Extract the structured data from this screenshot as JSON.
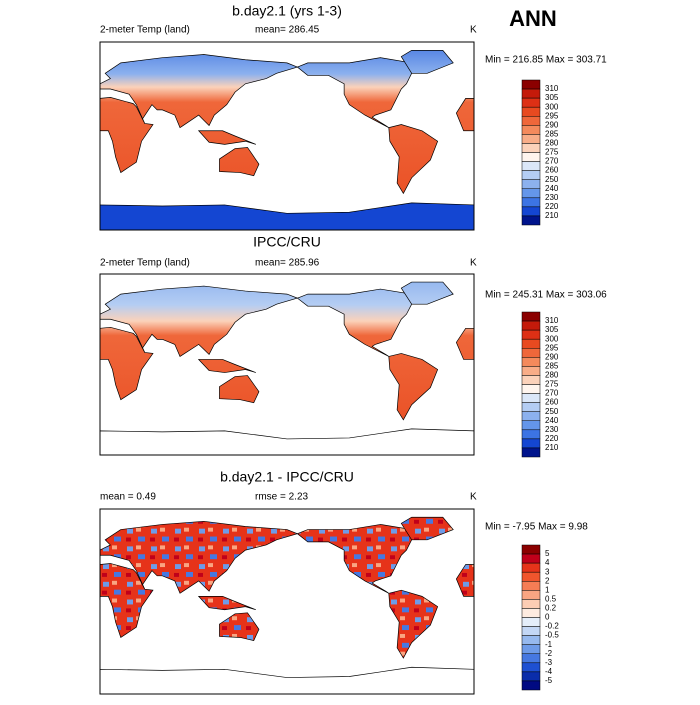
{
  "header": {
    "season": "ANN"
  },
  "panels": [
    {
      "title": "b.day2.1 (yrs 1-3)",
      "left": "2-meter Temp (land)",
      "center": "mean= 286.45",
      "right": "K",
      "stats": "Min = 216.85 Max = 303.71",
      "colorbar": {
        "labels": [
          310,
          305,
          300,
          295,
          290,
          285,
          280,
          275,
          270,
          260,
          250,
          240,
          230,
          220,
          210
        ],
        "colors": [
          "#8b0000",
          "#c41a0a",
          "#dd3015",
          "#e84a20",
          "#ef673a",
          "#f48a5c",
          "#f8ad88",
          "#fbd2ba",
          "#fff5ee",
          "#dbe7f8",
          "#b4cdf3",
          "#8cb1ee",
          "#6496ea",
          "#3c74e4",
          "#1446d2",
          "#00148c"
        ]
      }
    },
    {
      "title": "IPCC/CRU",
      "left": "2-meter Temp (land)",
      "center": "mean= 285.96",
      "right": "K",
      "stats": "Min = 245.31 Max = 303.06",
      "colorbar": {
        "labels": [
          310,
          305,
          300,
          295,
          290,
          285,
          280,
          275,
          270,
          260,
          250,
          240,
          230,
          220,
          210
        ],
        "colors": [
          "#8b0000",
          "#c41a0a",
          "#dd3015",
          "#e84a20",
          "#ef673a",
          "#f48a5c",
          "#f8ad88",
          "#fbd2ba",
          "#fff5ee",
          "#dbe7f8",
          "#b4cdf3",
          "#8cb1ee",
          "#6496ea",
          "#3c74e4",
          "#1446d2",
          "#00148c"
        ]
      }
    },
    {
      "title": "b.day2.1 - IPCC/CRU",
      "left": "mean =   0.49",
      "center": "rmse =   2.23",
      "right": "K",
      "stats": "Min =  -7.95 Max =   9.98",
      "colorbar": {
        "labels": [
          5,
          4,
          3,
          2,
          1,
          0.5,
          0.2,
          0,
          -0.2,
          -0.5,
          -1,
          -2,
          -3,
          -4,
          -5
        ],
        "colors": [
          "#8b0000",
          "#c0001a",
          "#e6331a",
          "#f0552d",
          "#f57d55",
          "#f9a582",
          "#fccdb4",
          "#fdebe0",
          "#e4eefa",
          "#c3d7f5",
          "#96b9ee",
          "#6e9be8",
          "#4678e1",
          "#1e50d2",
          "#0a2daa",
          "#000a82"
        ]
      }
    }
  ]
}
